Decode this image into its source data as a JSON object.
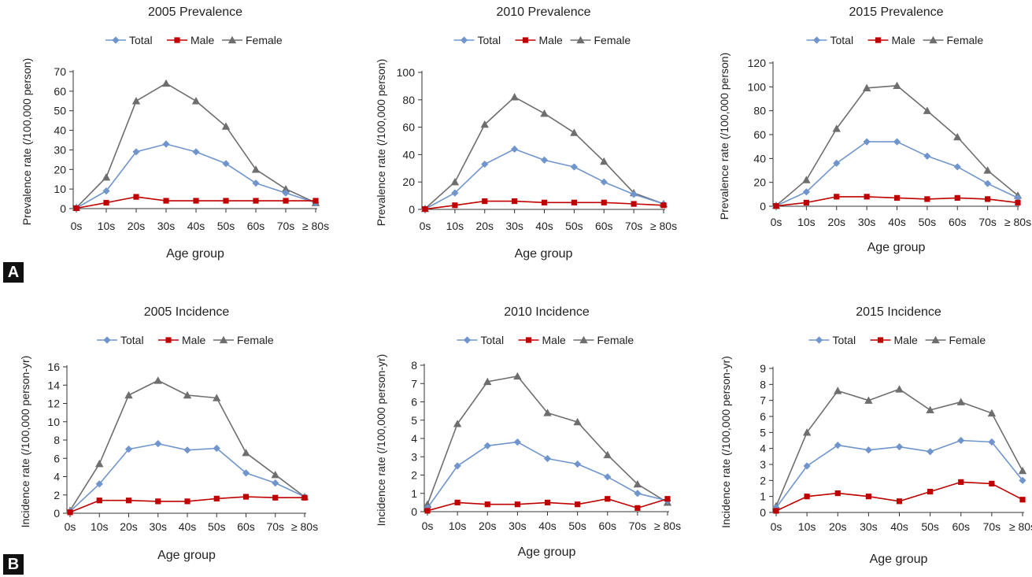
{
  "panels": [
    {
      "label": "A"
    },
    {
      "label": "B"
    }
  ],
  "chart_data": [
    {
      "type": "line",
      "title": "2005 Prevalence",
      "xlabel": "Age group",
      "ylabel": "Prevalence rate (/100,000 person)",
      "categories": [
        "0s",
        "10s",
        "20s",
        "30s",
        "40s",
        "50s",
        "60s",
        "70s",
        "≥ 80s"
      ],
      "ylim": [
        0,
        70
      ],
      "yticks": [
        0,
        10,
        20,
        30,
        40,
        50,
        60,
        70
      ],
      "grid": false,
      "legend": "top",
      "series": [
        {
          "name": "Total",
          "color": "#6f95cc",
          "marker": "diamond",
          "values": [
            0.3,
            9,
            29,
            33,
            29,
            23,
            13,
            8,
            3
          ]
        },
        {
          "name": "Male",
          "color": "#c00000",
          "marker": "square",
          "values": [
            0.2,
            3,
            6,
            4,
            4,
            4,
            4,
            4,
            4
          ]
        },
        {
          "name": "Female",
          "color": "#6e6e6e",
          "marker": "triangle",
          "values": [
            0.5,
            16,
            55,
            64,
            55,
            42,
            20,
            10,
            3
          ]
        }
      ]
    },
    {
      "type": "line",
      "title": "2010 Prevalence",
      "xlabel": "Age group",
      "ylabel": "Prevalence rate (/100,000 person)",
      "categories": [
        "0s",
        "10s",
        "20s",
        "30s",
        "40s",
        "50s",
        "60s",
        "70s",
        "≥ 80s"
      ],
      "ylim": [
        0,
        100
      ],
      "yticks": [
        0,
        20,
        40,
        60,
        80,
        100
      ],
      "grid": false,
      "legend": "top",
      "series": [
        {
          "name": "Total",
          "color": "#6f95cc",
          "marker": "diamond",
          "values": [
            0.3,
            12,
            33,
            44,
            36,
            31,
            20,
            11,
            4
          ]
        },
        {
          "name": "Male",
          "color": "#c00000",
          "marker": "square",
          "values": [
            0.2,
            3,
            6,
            6,
            5,
            5,
            5,
            4,
            3
          ]
        },
        {
          "name": "Female",
          "color": "#6e6e6e",
          "marker": "triangle",
          "values": [
            0.5,
            20,
            62,
            82,
            70,
            56,
            35,
            12,
            4
          ]
        }
      ]
    },
    {
      "type": "line",
      "title": "2015 Prevalence",
      "xlabel": "Age group",
      "ylabel": "Prevalence rate (/100,000 person)",
      "categories": [
        "0s",
        "10s",
        "20s",
        "30s",
        "40s",
        "50s",
        "60s",
        "70s",
        "≥ 80s"
      ],
      "ylim": [
        0,
        120
      ],
      "yticks": [
        0,
        20,
        40,
        60,
        80,
        100,
        120
      ],
      "grid": false,
      "legend": "top",
      "series": [
        {
          "name": "Total",
          "color": "#6f95cc",
          "marker": "diamond",
          "values": [
            0.3,
            12,
            36,
            54,
            54,
            42,
            33,
            19,
            7
          ]
        },
        {
          "name": "Male",
          "color": "#c00000",
          "marker": "square",
          "values": [
            0.2,
            3,
            8,
            8,
            7,
            6,
            7,
            6,
            3
          ]
        },
        {
          "name": "Female",
          "color": "#6e6e6e",
          "marker": "triangle",
          "values": [
            0.5,
            22,
            65,
            99,
            101,
            80,
            58,
            30,
            9
          ]
        }
      ]
    },
    {
      "type": "line",
      "title": "2005 Incidence",
      "xlabel": "Age group",
      "ylabel": "Incidence rate (/100,000 person-yr)",
      "categories": [
        "0s",
        "10s",
        "20s",
        "30s",
        "40s",
        "50s",
        "60s",
        "70s",
        "≥ 80s"
      ],
      "ylim": [
        0,
        16
      ],
      "yticks": [
        0,
        2,
        4,
        6,
        8,
        10,
        12,
        14,
        16
      ],
      "grid": false,
      "legend": "top",
      "series": [
        {
          "name": "Total",
          "color": "#6f95cc",
          "marker": "diamond",
          "values": [
            0.2,
            3.2,
            7.0,
            7.6,
            6.9,
            7.1,
            4.4,
            3.3,
            1.8
          ]
        },
        {
          "name": "Male",
          "color": "#c00000",
          "marker": "square",
          "values": [
            0.1,
            1.4,
            1.4,
            1.3,
            1.3,
            1.6,
            1.8,
            1.7,
            1.7
          ]
        },
        {
          "name": "Female",
          "color": "#6e6e6e",
          "marker": "triangle",
          "values": [
            0.3,
            5.4,
            12.9,
            14.5,
            12.9,
            12.6,
            6.6,
            4.2,
            1.8
          ]
        }
      ]
    },
    {
      "type": "line",
      "title": "2010 Incidence",
      "xlabel": "Age group",
      "ylabel": "Incidence rate (/100,000 person-yr)",
      "categories": [
        "0s",
        "10s",
        "20s",
        "30s",
        "40s",
        "50s",
        "60s",
        "70s",
        "≥ 80s"
      ],
      "ylim": [
        0,
        8
      ],
      "yticks": [
        0,
        1,
        2,
        3,
        4,
        5,
        6,
        7,
        8
      ],
      "grid": false,
      "legend": "top",
      "series": [
        {
          "name": "Total",
          "color": "#6f95cc",
          "marker": "diamond",
          "values": [
            0.2,
            2.5,
            3.6,
            3.8,
            2.9,
            2.6,
            1.9,
            1.0,
            0.6
          ]
        },
        {
          "name": "Male",
          "color": "#c00000",
          "marker": "square",
          "values": [
            0.05,
            0.5,
            0.4,
            0.4,
            0.5,
            0.4,
            0.7,
            0.2,
            0.7
          ]
        },
        {
          "name": "Female",
          "color": "#6e6e6e",
          "marker": "triangle",
          "values": [
            0.4,
            4.8,
            7.1,
            7.4,
            5.4,
            4.9,
            3.1,
            1.5,
            0.5
          ]
        }
      ]
    },
    {
      "type": "line",
      "title": "2015 Incidence",
      "xlabel": "Age group",
      "ylabel": "Incidence rate (/100,000 person-yr)",
      "categories": [
        "0s",
        "10s",
        "20s",
        "30s",
        "40s",
        "50s",
        "60s",
        "70s",
        "≥ 80s"
      ],
      "ylim": [
        0,
        9
      ],
      "yticks": [
        0,
        1,
        2,
        3,
        4,
        5,
        6,
        7,
        8,
        9
      ],
      "grid": false,
      "legend": "top",
      "series": [
        {
          "name": "Total",
          "color": "#6f95cc",
          "marker": "diamond",
          "values": [
            0.3,
            2.9,
            4.2,
            3.9,
            4.1,
            3.8,
            4.5,
            4.4,
            2.0
          ]
        },
        {
          "name": "Male",
          "color": "#c00000",
          "marker": "square",
          "values": [
            0.1,
            1.0,
            1.2,
            1.0,
            0.7,
            1.3,
            1.9,
            1.8,
            0.8
          ]
        },
        {
          "name": "Female",
          "color": "#6e6e6e",
          "marker": "triangle",
          "values": [
            0.4,
            5.0,
            7.6,
            7.0,
            7.7,
            6.4,
            6.9,
            6.2,
            2.6
          ]
        }
      ]
    }
  ]
}
